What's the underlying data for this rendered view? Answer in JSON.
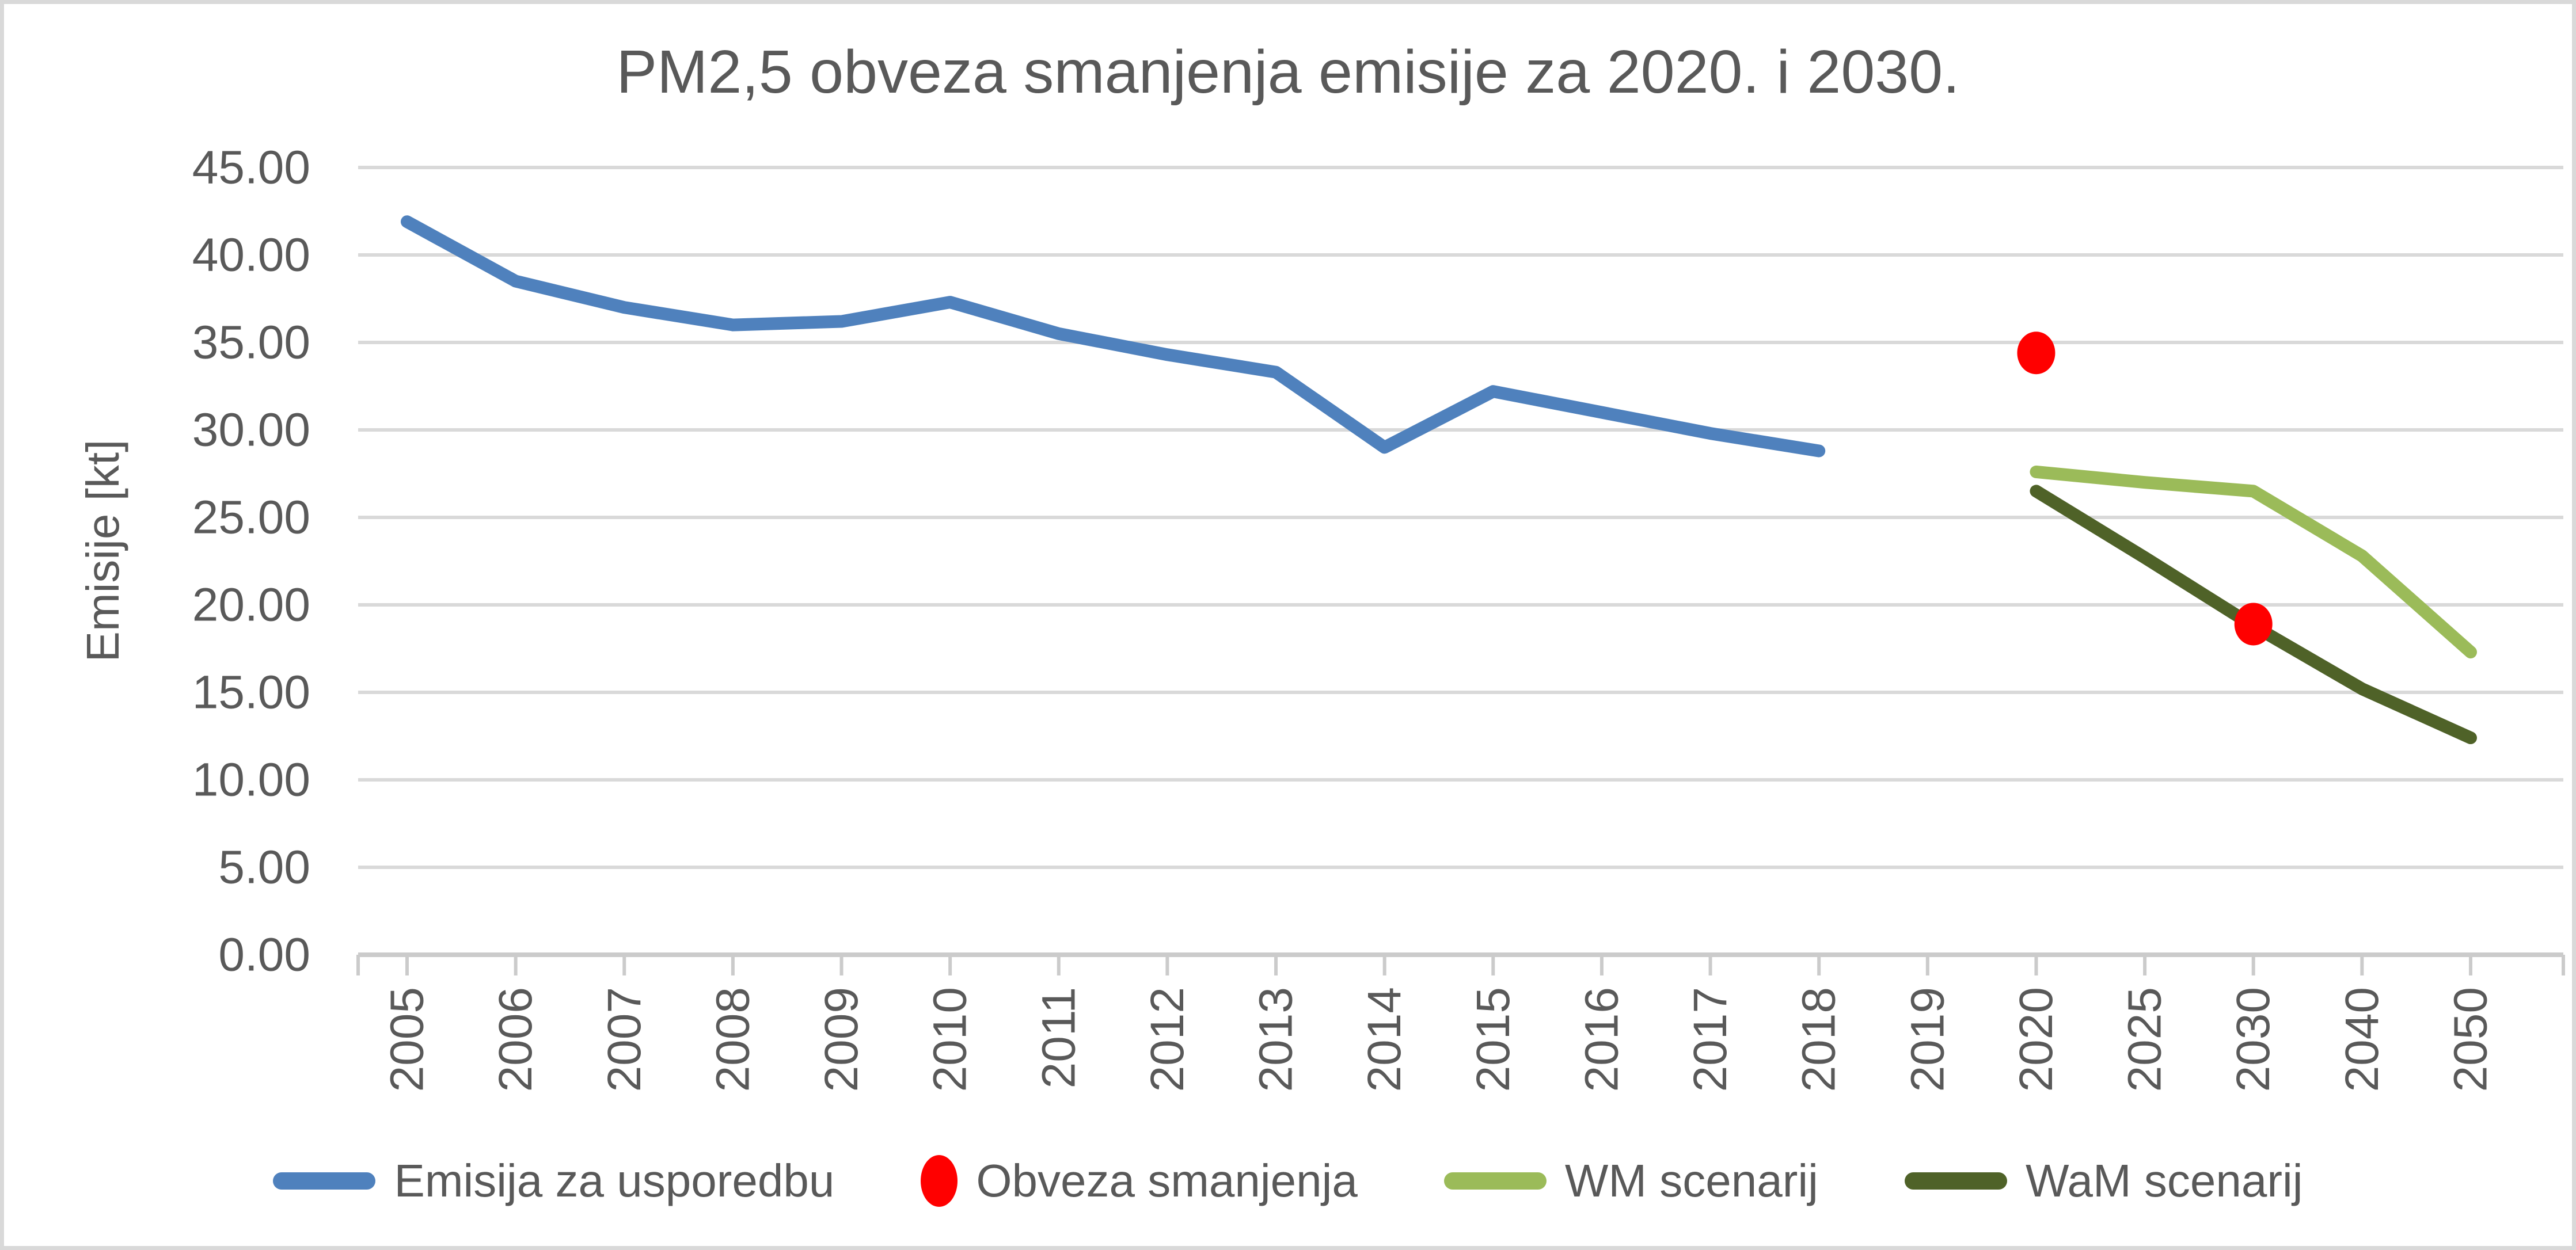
{
  "chart_data": {
    "type": "line",
    "title": "PM2,5 obveza smanjenja emisije za 2020. i 2030.",
    "xlabel": "",
    "ylabel": "Emisije [kt]",
    "ylim": [
      0,
      45
    ],
    "y_tick_step": 5,
    "y_tick_decimals": 2,
    "grid": true,
    "legend_position": "bottom",
    "categories": [
      "2005",
      "2006",
      "2007",
      "2008",
      "2009",
      "2010",
      "2011",
      "2012",
      "2013",
      "2014",
      "2015",
      "2016",
      "2017",
      "2018",
      "2019",
      "2020",
      "2025",
      "2030",
      "2040",
      "2050"
    ],
    "series": [
      {
        "name": "Emisija za usporedbu",
        "type": "line",
        "color": "#4F81BD",
        "values": [
          41.9,
          38.5,
          37.0,
          36.0,
          36.2,
          37.3,
          35.5,
          34.3,
          33.3,
          29.0,
          32.2,
          31.0,
          29.8,
          28.8,
          null,
          null,
          null,
          null,
          null,
          null
        ]
      },
      {
        "name": "Obveza smanjenja",
        "type": "scatter",
        "color": "#FF0000",
        "values": [
          null,
          null,
          null,
          null,
          null,
          null,
          null,
          null,
          null,
          null,
          null,
          null,
          null,
          null,
          null,
          34.4,
          null,
          18.9,
          null,
          null
        ]
      },
      {
        "name": "WM scenarij",
        "type": "line",
        "color": "#9BBB59",
        "values": [
          null,
          null,
          null,
          null,
          null,
          null,
          null,
          null,
          null,
          null,
          null,
          null,
          null,
          null,
          null,
          27.6,
          27.0,
          26.5,
          22.8,
          17.3
        ]
      },
      {
        "name": "WaM scenarij",
        "type": "line",
        "color": "#4F6228",
        "values": [
          null,
          null,
          null,
          null,
          null,
          null,
          null,
          null,
          null,
          null,
          null,
          null,
          null,
          null,
          null,
          26.5,
          22.7,
          18.8,
          15.2,
          12.4
        ]
      }
    ],
    "colors": {
      "text": "#595959",
      "gridline": "#D9D9D9",
      "axis_line": "#CBCBCB",
      "background": "#FFFFFF",
      "border": "#D9D9D9"
    }
  }
}
